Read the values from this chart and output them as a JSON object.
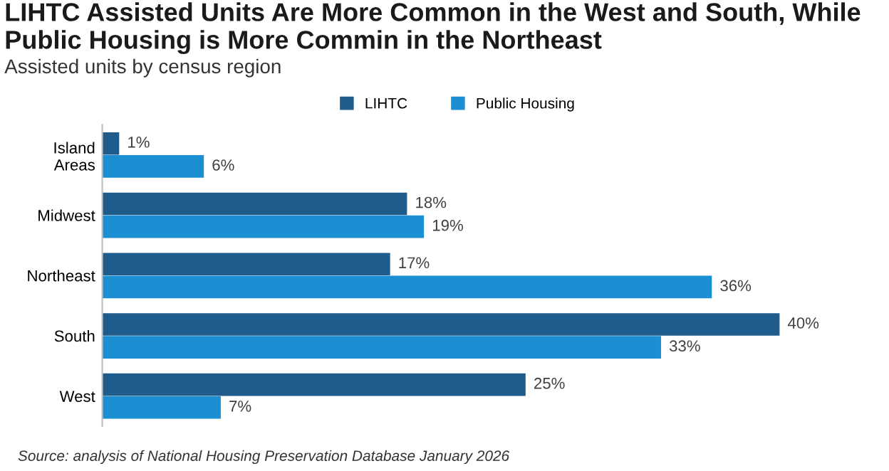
{
  "chart_data": {
    "type": "bar",
    "orientation": "horizontal",
    "title": "LIHTC Assisted Units Are More Common in the West and South, While Public Housing is More Commin in the Northeast",
    "subtitle": "Assisted units by census region",
    "categories": [
      "Island\nAreas",
      "Midwest",
      "Northeast",
      "South",
      "West"
    ],
    "series": [
      {
        "name": "LIHTC",
        "color": "#1f5c8b",
        "values": [
          1,
          18,
          17,
          40,
          25
        ],
        "value_labels": [
          "1%",
          "18%",
          "17%",
          "40%",
          "25%"
        ]
      },
      {
        "name": "Public Housing",
        "color": "#1b8fd2",
        "values": [
          6,
          19,
          36,
          33,
          7
        ],
        "value_labels": [
          "6%",
          "19%",
          "36%",
          "33%",
          "7%"
        ]
      }
    ],
    "legend": "top",
    "grid": false,
    "tick_labels": "y",
    "annotations": [
      "Source: analysis of National Housing Preservation Database January 2026"
    ]
  }
}
